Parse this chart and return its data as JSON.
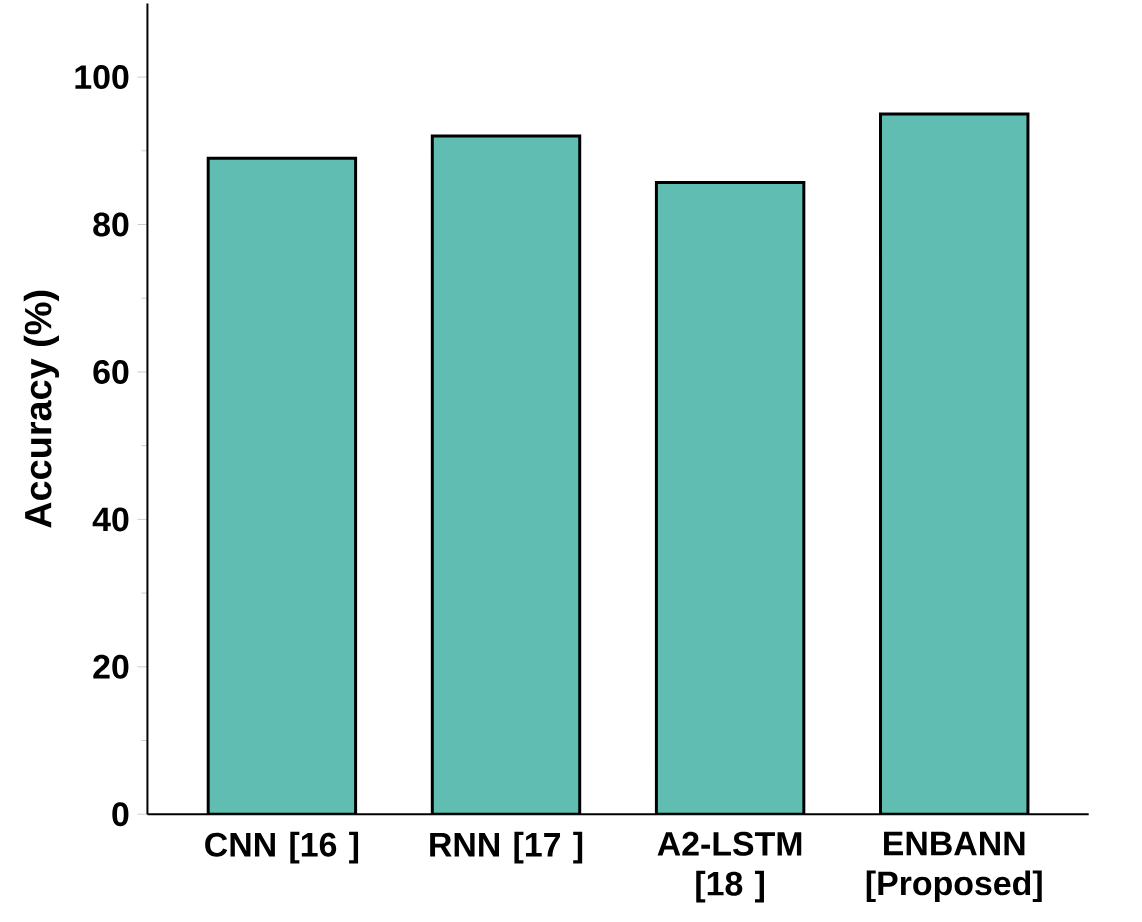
{
  "chart_data": {
    "type": "bar",
    "ylabel": "Accuracy (%)",
    "categories": [
      "CNN [16 ]",
      "RNN [17 ]",
      "A2-LSTM [18 ]",
      "ENBANN [Proposed]"
    ],
    "values": [
      89,
      92,
      85.7,
      95
    ],
    "color": "#5fbdb1",
    "ylim": [
      0,
      110
    ],
    "yticks": [
      0,
      20,
      40,
      60,
      80,
      100
    ],
    "grid": false
  }
}
